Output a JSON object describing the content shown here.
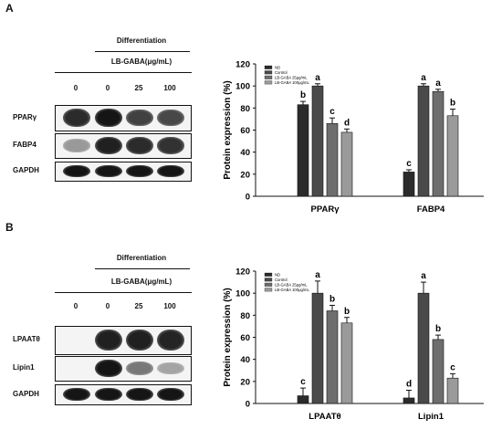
{
  "panels": [
    {
      "letter": "A",
      "blot": {
        "differentiation_label": "Differentiation",
        "treatment_label": "LB-GABA(μg/mL)",
        "lanes": [
          "0",
          "0",
          "25",
          "100"
        ],
        "proteins": [
          {
            "name": "PPARγ",
            "band_intensity": [
              0.85,
              0.95,
              0.75,
              0.72
            ]
          },
          {
            "name": "FABP4",
            "band_intensity": [
              0.35,
              0.9,
              0.85,
              0.82
            ]
          },
          {
            "name": "GAPDH",
            "band_intensity": [
              0.95,
              0.95,
              0.95,
              0.95
            ]
          }
        ]
      }
    },
    {
      "letter": "B",
      "blot": {
        "differentiation_label": "Differentiation",
        "treatment_label": "LB-GABA(μg/mL)",
        "lanes": [
          "0",
          "0",
          "25",
          "100"
        ],
        "proteins": [
          {
            "name": "LPAATθ",
            "band_intensity": [
              0.0,
              0.9,
              0.9,
              0.88
            ]
          },
          {
            "name": "Lipin1",
            "band_intensity": [
              0.0,
              0.95,
              0.5,
              0.3
            ]
          },
          {
            "name": "GAPDH",
            "band_intensity": [
              0.95,
              0.95,
              0.95,
              0.95
            ]
          }
        ]
      }
    }
  ],
  "chart_data": [
    {
      "type": "bar",
      "ylabel": "Protein expression (%)",
      "ylim": [
        0,
        120
      ],
      "yticks": [
        0,
        20,
        40,
        60,
        80,
        100,
        120
      ],
      "categories": [
        "PPARγ",
        "FABP4"
      ],
      "legend_position": "top-left",
      "series": [
        {
          "name": "ND",
          "color": "#2b2b2b",
          "values": [
            83,
            22
          ],
          "errors": [
            3,
            2
          ],
          "letters": [
            "b",
            "c"
          ]
        },
        {
          "name": "Control",
          "color": "#4a4a4a",
          "values": [
            100,
            100
          ],
          "errors": [
            2,
            2
          ],
          "letters": [
            "a",
            "a"
          ]
        },
        {
          "name": "LB-GABA 25μg/mL",
          "color": "#6e6e6e",
          "values": [
            66,
            95
          ],
          "errors": [
            5,
            2
          ],
          "letters": [
            "c",
            "a"
          ]
        },
        {
          "name": "LB-GABA 100μg/mL",
          "color": "#9a9a9a",
          "values": [
            58,
            73
          ],
          "errors": [
            3,
            6
          ],
          "letters": [
            "d",
            "b"
          ]
        }
      ]
    },
    {
      "type": "bar",
      "ylabel": "Protein expression (%)",
      "ylim": [
        0,
        120
      ],
      "yticks": [
        0,
        20,
        40,
        60,
        80,
        100,
        120
      ],
      "categories": [
        "LPAATθ",
        "Lipin1"
      ],
      "legend_position": "top-left",
      "series": [
        {
          "name": "ND",
          "color": "#2b2b2b",
          "values": [
            7,
            5
          ],
          "errors": [
            7,
            7
          ],
          "letters": [
            "c",
            "d"
          ]
        },
        {
          "name": "Control",
          "color": "#4a4a4a",
          "values": [
            100,
            100
          ],
          "errors": [
            11,
            10
          ],
          "letters": [
            "a",
            "a"
          ]
        },
        {
          "name": "LB-GABA 25μg/mL",
          "color": "#6e6e6e",
          "values": [
            84,
            58
          ],
          "errors": [
            5,
            4
          ],
          "letters": [
            "b",
            "b"
          ]
        },
        {
          "name": "LB-GABA 100μg/mL",
          "color": "#9a9a9a",
          "values": [
            73,
            23
          ],
          "errors": [
            5,
            4
          ],
          "letters": [
            "b",
            "c"
          ]
        }
      ]
    }
  ]
}
